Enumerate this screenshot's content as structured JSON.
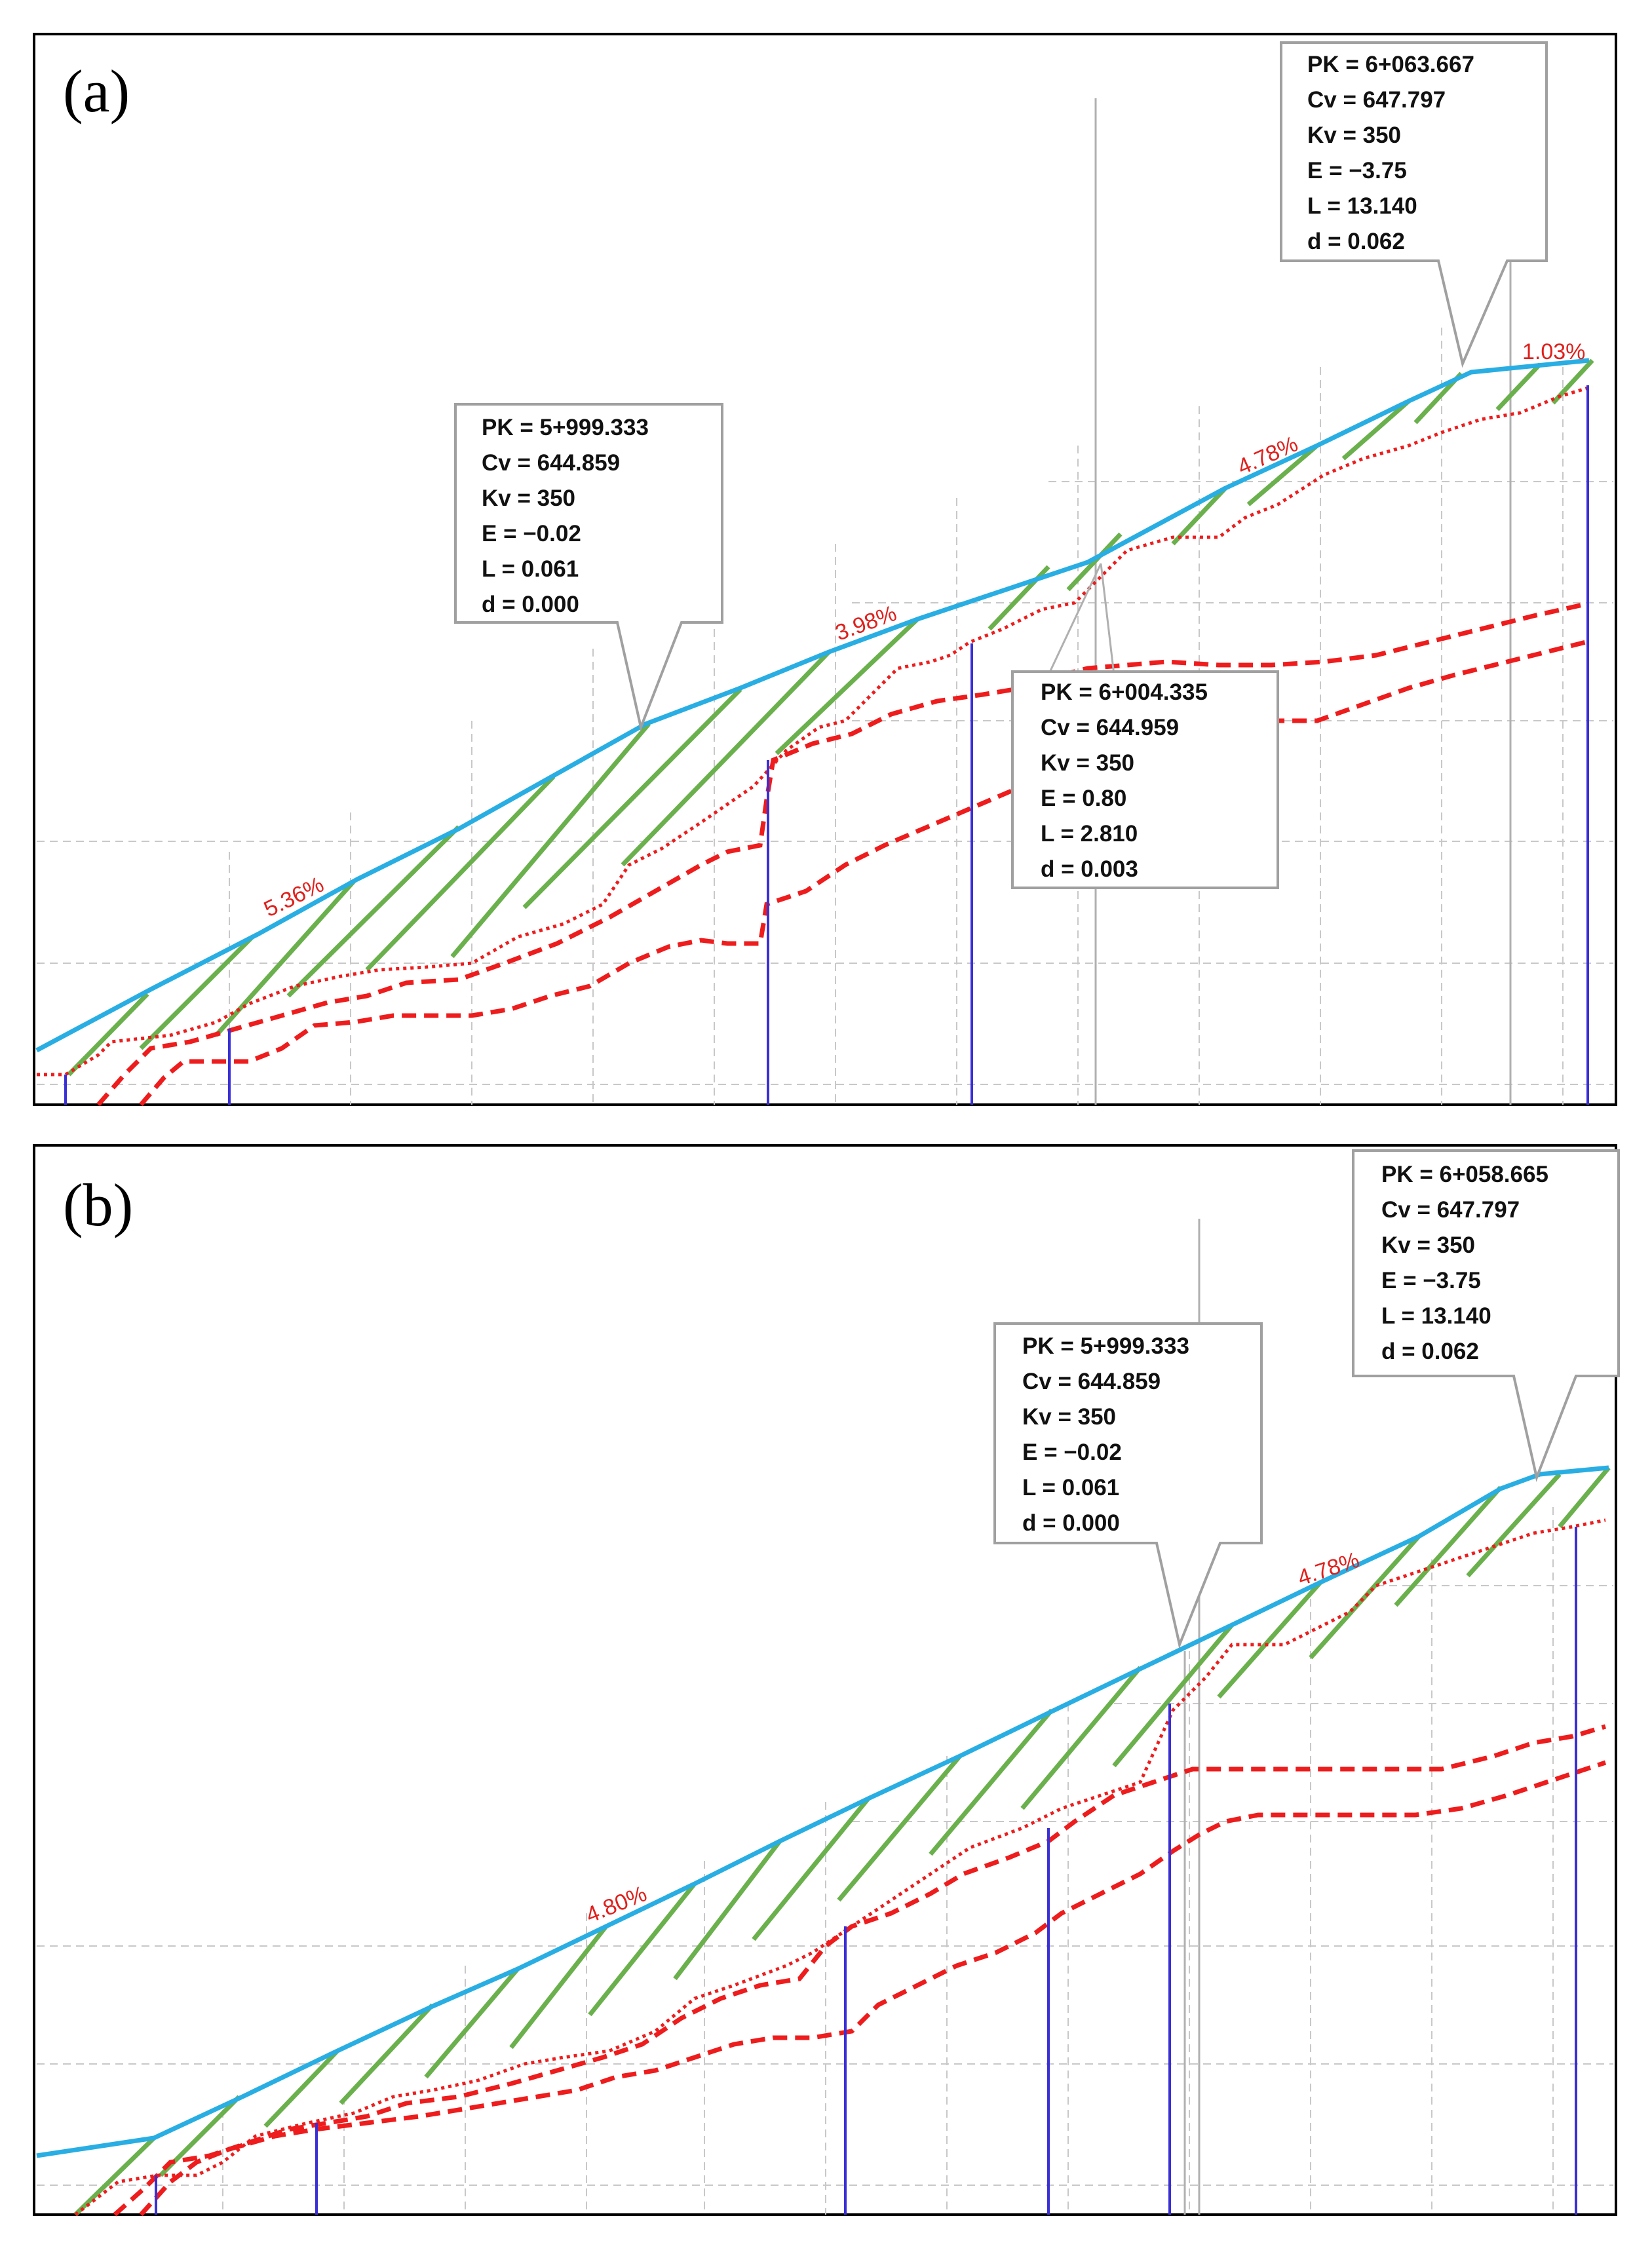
{
  "figure": {
    "panels": [
      {
        "label": "(a)",
        "slopes": [
          "5.36%",
          "3.98%",
          "4.78%",
          "1.03%"
        ],
        "callouts": [
          {
            "lines": [
              "PK = 6+063.667",
              "Cv = 647.797",
              "Kv = 350",
              "E = −3.75",
              "L = 13.140",
              "d = 0.062"
            ]
          },
          {
            "lines": [
              "PK = 5+999.333",
              "Cv = 644.859",
              "Kv = 350",
              "E = −0.02",
              "L = 0.061",
              "d = 0.000"
            ]
          },
          {
            "lines": [
              "PK = 6+004.335",
              "Cv = 644.959",
              "Kv = 350",
              "E = 0.80",
              "L = 2.810",
              "d = 0.003"
            ]
          }
        ]
      },
      {
        "label": "(b)",
        "slopes": [
          "4.80%",
          "4.78%"
        ],
        "callouts": [
          {
            "lines": [
              "PK = 6+058.665",
              "Cv = 647.797",
              "Kv = 350",
              "E = −3.75",
              "L = 13.140",
              "d = 0.062"
            ]
          },
          {
            "lines": [
              "PK = 5+999.333",
              "Cv = 644.859",
              "Kv = 350",
              "E = −0.02",
              "L = 0.061",
              "d = 0.000"
            ]
          }
        ]
      }
    ]
  },
  "colors": {
    "road": "#29aee3",
    "hatch": "#6ab04c",
    "terrain": "#ee1c1c",
    "posts": "#3a2fd6",
    "slope_text": "#e0201c"
  }
}
